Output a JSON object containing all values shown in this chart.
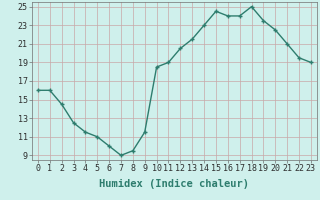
{
  "x": [
    0,
    1,
    2,
    3,
    4,
    5,
    6,
    7,
    8,
    9,
    10,
    11,
    12,
    13,
    14,
    15,
    16,
    17,
    18,
    19,
    20,
    21,
    22,
    23
  ],
  "y": [
    16,
    16,
    14.5,
    12.5,
    11.5,
    11,
    10,
    9,
    9.5,
    11.5,
    18.5,
    19,
    20.5,
    21.5,
    23,
    24.5,
    24,
    24,
    25,
    23.5,
    22.5,
    21,
    19.5,
    19
  ],
  "line_color": "#2e7d6e",
  "marker": "+",
  "marker_size": 3,
  "bg_color": "#cff0ec",
  "grid_color": "#c8a8a8",
  "xlabel": "Humidex (Indice chaleur)",
  "xlim_min": -0.5,
  "xlim_max": 23.5,
  "ylim_min": 8.5,
  "ylim_max": 25.5,
  "yticks": [
    9,
    11,
    13,
    15,
    17,
    19,
    21,
    23,
    25
  ],
  "xticks": [
    0,
    1,
    2,
    3,
    4,
    5,
    6,
    7,
    8,
    9,
    10,
    11,
    12,
    13,
    14,
    15,
    16,
    17,
    18,
    19,
    20,
    21,
    22,
    23
  ],
  "xlabel_fontsize": 7.5,
  "tick_fontsize": 6,
  "line_width": 1.0,
  "marker_edge_width": 1.0
}
